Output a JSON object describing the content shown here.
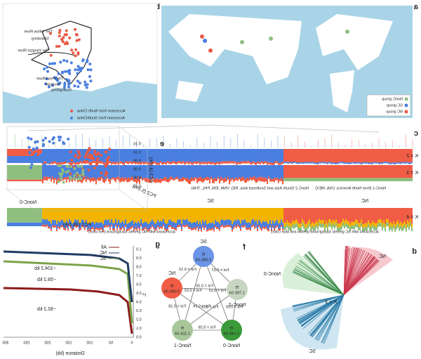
{
  "panels": {
    "a": {
      "label": "a",
      "legend": [
        "NonC group",
        "SC group",
        "NC group"
      ]
    },
    "b": {
      "label": "b",
      "places": [
        "The Yellow River",
        "Shandong",
        "The Yangtze River",
        "The Pearl River",
        "Guangxi",
        "Guangdong"
      ],
      "legend": [
        "Accession from North China",
        "Accession from SouthChina"
      ]
    },
    "c": {
      "label": "c",
      "k": [
        "K = 2",
        "K = 3",
        "K = 4"
      ],
      "groups": [
        "NonC-0",
        "SC",
        "NC"
      ],
      "notes": [
        "NonC-1 (from North America: USA, MEX)",
        "NonC-2 (South Asia and Southeast Asia: IND, VNM, IDN, PHL, THA)",
        "accessions with NC genetic background (red color)",
        "accessions with SC genetic background (yellow and blue color)"
      ]
    },
    "d": {
      "label": "d",
      "groups": [
        "NC",
        "NonC-0",
        "SC"
      ],
      "k": "K = 3"
    },
    "e": {
      "label": "e",
      "axes": [
        "PC1 (38.1%)",
        "PC2 (5.3%)",
        "PC3 (4.6%)"
      ],
      "ticks": [
        "0.15",
        "0.10",
        "0.05",
        "0.00",
        "-0.05",
        "-0.10"
      ]
    },
    "f": {
      "label": "f",
      "nodes": [
        {
          "name": "SC",
          "pi": "π",
          "value": "2.38E-04"
        },
        {
          "name": "NC",
          "pi": "π",
          "value": "2.08E-04"
        },
        {
          "name": "NonC-1",
          "pi": "π",
          "value": "2.11E-04"
        },
        {
          "name": "NonC-0",
          "pi": "π",
          "value": "2.14E-04"
        },
        {
          "name": "NonC-2",
          "pi": "π",
          "value": "1.70E-04"
        }
      ],
      "edges": [
        "Fst = 0.13",
        "Fst = 0.07",
        "Fst = 0.22",
        "Fst = 0.23",
        "Fst = 0.18",
        "Fst = 0.24",
        "Fst = 0.30",
        "Fst = 0.28",
        "Fst = 0.16",
        "Fst = 0.26"
      ]
    },
    "g": {
      "label": "g",
      "ylabel": "r²",
      "xlabel": "Distance (kb)",
      "yticks": [
        "0.0",
        "0.1",
        "0.2",
        "0.3",
        "0.4",
        "0.5",
        "0.6",
        "0.7",
        "0.8",
        "0.9",
        "1.0"
      ],
      "xticks": [
        "0",
        "50",
        "100",
        "150",
        "200",
        "250",
        "300"
      ],
      "legend": [
        "All",
        "NC",
        "SC"
      ],
      "notes": [
        "~104.2 kb",
        "~59.2 kb",
        "~92.2 kb"
      ]
    }
  }
}
